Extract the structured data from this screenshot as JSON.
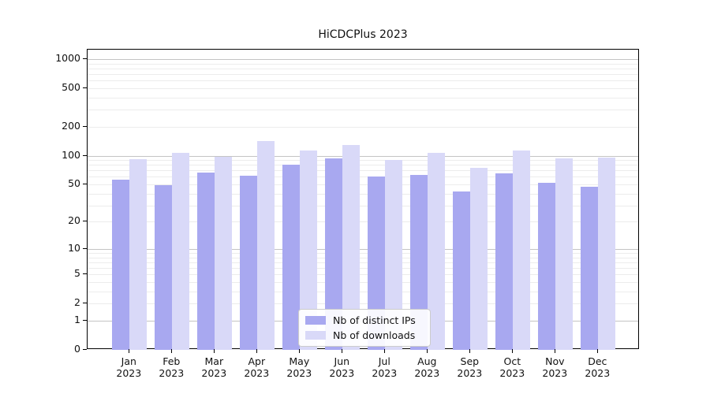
{
  "chart_data": {
    "type": "bar",
    "title": "HiCDCPlus 2023",
    "year_label": "2023",
    "categories": [
      "Jan",
      "Feb",
      "Mar",
      "Apr",
      "May",
      "Jun",
      "Jul",
      "Aug",
      "Sep",
      "Oct",
      "Nov",
      "Dec"
    ],
    "series": [
      {
        "name": "Nb of distinct IPs",
        "color": "#a8a8f0",
        "values": [
          56,
          49,
          66,
          62,
          80,
          94,
          61,
          63,
          42,
          65,
          52,
          47
        ]
      },
      {
        "name": "Nb of downloads",
        "color": "#d9d9f8",
        "values": [
          92,
          107,
          97,
          143,
          114,
          128,
          91,
          107,
          75,
          114,
          94,
          96
        ]
      }
    ],
    "yscale": "log10(value+1)",
    "yticks": [
      0,
      1,
      2,
      5,
      10,
      20,
      50,
      100,
      200,
      500,
      1000
    ],
    "ylim": [
      0,
      1250
    ],
    "grid": true,
    "legend_position": "bottom-center",
    "colors": {
      "major_grid": "#c4c4c4",
      "minor_grid": "#ececec",
      "axis": "#000000",
      "text": "#111111"
    }
  }
}
